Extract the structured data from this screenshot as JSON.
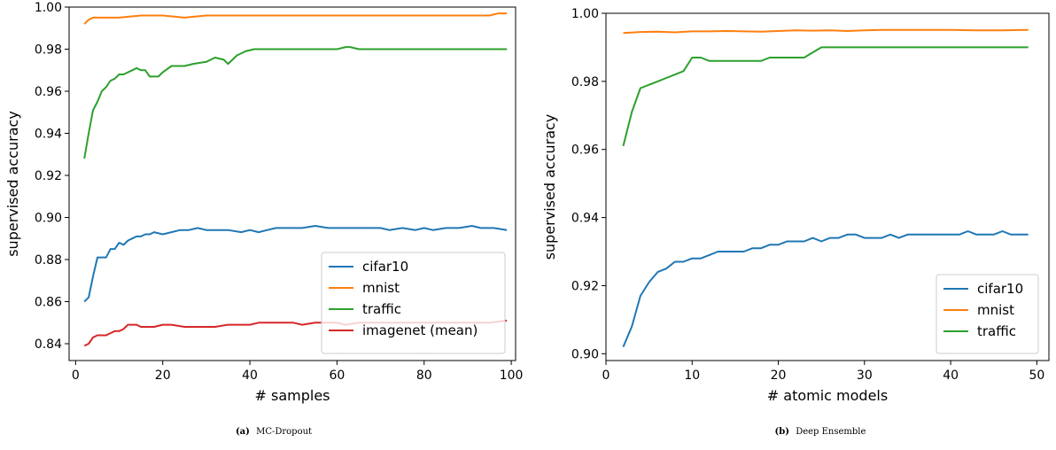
{
  "chart_data": [
    {
      "type": "line",
      "caption_tag": "(a)",
      "caption": "MC-Dropout",
      "xlabel": "# samples",
      "ylabel": "supervised accuracy",
      "xlim": [
        -1.5,
        101
      ],
      "ylim": [
        0.832,
        1.0
      ],
      "xticks": [
        0,
        20,
        40,
        60,
        80,
        100
      ],
      "yticks": [
        0.84,
        0.86,
        0.88,
        0.9,
        0.92,
        0.94,
        0.96,
        0.98,
        1.0
      ],
      "ytick_decimals": 2,
      "legend_position": "lower-right",
      "grid": false,
      "series": [
        {
          "name": "cifar10",
          "color": "#1f77b4",
          "points": [
            [
              2,
              0.86
            ],
            [
              3,
              0.862
            ],
            [
              4,
              0.872
            ],
            [
              5,
              0.881
            ],
            [
              6,
              0.881
            ],
            [
              7,
              0.881
            ],
            [
              8,
              0.885
            ],
            [
              9,
              0.885
            ],
            [
              10,
              0.888
            ],
            [
              11,
              0.887
            ],
            [
              12,
              0.889
            ],
            [
              13,
              0.89
            ],
            [
              14,
              0.891
            ],
            [
              15,
              0.891
            ],
            [
              16,
              0.892
            ],
            [
              17,
              0.892
            ],
            [
              18,
              0.893
            ],
            [
              20,
              0.892
            ],
            [
              22,
              0.893
            ],
            [
              24,
              0.894
            ],
            [
              26,
              0.894
            ],
            [
              28,
              0.895
            ],
            [
              30,
              0.894
            ],
            [
              32,
              0.894
            ],
            [
              35,
              0.894
            ],
            [
              38,
              0.893
            ],
            [
              40,
              0.894
            ],
            [
              42,
              0.893
            ],
            [
              44,
              0.894
            ],
            [
              46,
              0.895
            ],
            [
              48,
              0.895
            ],
            [
              50,
              0.895
            ],
            [
              52,
              0.895
            ],
            [
              55,
              0.896
            ],
            [
              58,
              0.895
            ],
            [
              60,
              0.895
            ],
            [
              62,
              0.895
            ],
            [
              65,
              0.895
            ],
            [
              68,
              0.895
            ],
            [
              70,
              0.895
            ],
            [
              72,
              0.894
            ],
            [
              75,
              0.895
            ],
            [
              78,
              0.894
            ],
            [
              80,
              0.895
            ],
            [
              82,
              0.894
            ],
            [
              85,
              0.895
            ],
            [
              88,
              0.895
            ],
            [
              91,
              0.896
            ],
            [
              93,
              0.895
            ],
            [
              96,
              0.895
            ],
            [
              99,
              0.894
            ]
          ]
        },
        {
          "name": "mnist",
          "color": "#ff7f0e",
          "points": [
            [
              2,
              0.992
            ],
            [
              3,
              0.994
            ],
            [
              4,
              0.995
            ],
            [
              6,
              0.995
            ],
            [
              8,
              0.995
            ],
            [
              10,
              0.995
            ],
            [
              15,
              0.996
            ],
            [
              20,
              0.996
            ],
            [
              25,
              0.995
            ],
            [
              30,
              0.996
            ],
            [
              35,
              0.996
            ],
            [
              40,
              0.996
            ],
            [
              50,
              0.996
            ],
            [
              60,
              0.996
            ],
            [
              70,
              0.996
            ],
            [
              80,
              0.996
            ],
            [
              90,
              0.996
            ],
            [
              95,
              0.996
            ],
            [
              97,
              0.997
            ],
            [
              99,
              0.997
            ]
          ]
        },
        {
          "name": "traffic",
          "color": "#2ca02c",
          "points": [
            [
              2,
              0.928
            ],
            [
              3,
              0.94
            ],
            [
              4,
              0.951
            ],
            [
              5,
              0.955
            ],
            [
              6,
              0.96
            ],
            [
              7,
              0.962
            ],
            [
              8,
              0.965
            ],
            [
              9,
              0.966
            ],
            [
              10,
              0.968
            ],
            [
              11,
              0.968
            ],
            [
              12,
              0.969
            ],
            [
              13,
              0.97
            ],
            [
              14,
              0.971
            ],
            [
              15,
              0.97
            ],
            [
              16,
              0.97
            ],
            [
              17,
              0.967
            ],
            [
              18,
              0.967
            ],
            [
              19,
              0.967
            ],
            [
              20,
              0.969
            ],
            [
              22,
              0.972
            ],
            [
              25,
              0.972
            ],
            [
              27,
              0.973
            ],
            [
              30,
              0.974
            ],
            [
              32,
              0.976
            ],
            [
              34,
              0.975
            ],
            [
              35,
              0.973
            ],
            [
              37,
              0.977
            ],
            [
              39,
              0.979
            ],
            [
              41,
              0.98
            ],
            [
              45,
              0.98
            ],
            [
              50,
              0.98
            ],
            [
              55,
              0.98
            ],
            [
              60,
              0.98
            ],
            [
              62,
              0.981
            ],
            [
              63,
              0.981
            ],
            [
              65,
              0.98
            ],
            [
              70,
              0.98
            ],
            [
              80,
              0.98
            ],
            [
              90,
              0.98
            ],
            [
              99,
              0.98
            ]
          ]
        },
        {
          "name": "imagenet (mean)",
          "color": "#d62728",
          "points": [
            [
              2,
              0.839
            ],
            [
              3,
              0.84
            ],
            [
              4,
              0.843
            ],
            [
              5,
              0.844
            ],
            [
              6,
              0.844
            ],
            [
              7,
              0.844
            ],
            [
              8,
              0.845
            ],
            [
              9,
              0.846
            ],
            [
              10,
              0.846
            ],
            [
              11,
              0.847
            ],
            [
              12,
              0.849
            ],
            [
              13,
              0.849
            ],
            [
              14,
              0.849
            ],
            [
              15,
              0.848
            ],
            [
              16,
              0.848
            ],
            [
              18,
              0.848
            ],
            [
              20,
              0.849
            ],
            [
              22,
              0.849
            ],
            [
              25,
              0.848
            ],
            [
              28,
              0.848
            ],
            [
              30,
              0.848
            ],
            [
              32,
              0.848
            ],
            [
              35,
              0.849
            ],
            [
              38,
              0.849
            ],
            [
              40,
              0.849
            ],
            [
              42,
              0.85
            ],
            [
              45,
              0.85
            ],
            [
              48,
              0.85
            ],
            [
              50,
              0.85
            ],
            [
              52,
              0.849
            ],
            [
              55,
              0.85
            ],
            [
              58,
              0.85
            ],
            [
              60,
              0.85
            ],
            [
              62,
              0.849
            ],
            [
              65,
              0.85
            ],
            [
              70,
              0.85
            ],
            [
              75,
              0.85
            ],
            [
              80,
              0.85
            ],
            [
              85,
              0.85
            ],
            [
              90,
              0.85
            ],
            [
              95,
              0.85
            ],
            [
              99,
              0.851
            ]
          ]
        }
      ]
    },
    {
      "type": "line",
      "caption_tag": "(b)",
      "caption": "Deep Ensemble",
      "xlabel": "# atomic models",
      "ylabel": "supervised accuracy",
      "xlim": [
        0,
        51.4
      ],
      "ylim": [
        0.898,
        1.0
      ],
      "xticks": [
        0,
        10,
        20,
        30,
        40,
        50
      ],
      "yticks": [
        0.9,
        0.92,
        0.94,
        0.96,
        0.98,
        1.0
      ],
      "ytick_decimals": 2,
      "legend_position": "lower-right",
      "grid": false,
      "series": [
        {
          "name": "cifar10",
          "color": "#1f77b4",
          "points": [
            [
              2,
              0.902
            ],
            [
              3,
              0.908
            ],
            [
              4,
              0.917
            ],
            [
              5,
              0.921
            ],
            [
              6,
              0.924
            ],
            [
              7,
              0.925
            ],
            [
              8,
              0.927
            ],
            [
              9,
              0.927
            ],
            [
              10,
              0.928
            ],
            [
              11,
              0.928
            ],
            [
              12,
              0.929
            ],
            [
              13,
              0.93
            ],
            [
              14,
              0.93
            ],
            [
              15,
              0.93
            ],
            [
              16,
              0.93
            ],
            [
              17,
              0.931
            ],
            [
              18,
              0.931
            ],
            [
              19,
              0.932
            ],
            [
              20,
              0.932
            ],
            [
              21,
              0.933
            ],
            [
              22,
              0.933
            ],
            [
              23,
              0.933
            ],
            [
              24,
              0.934
            ],
            [
              25,
              0.933
            ],
            [
              26,
              0.934
            ],
            [
              27,
              0.934
            ],
            [
              28,
              0.935
            ],
            [
              29,
              0.935
            ],
            [
              30,
              0.934
            ],
            [
              31,
              0.934
            ],
            [
              32,
              0.934
            ],
            [
              33,
              0.935
            ],
            [
              34,
              0.934
            ],
            [
              35,
              0.935
            ],
            [
              36,
              0.935
            ],
            [
              37,
              0.935
            ],
            [
              38,
              0.935
            ],
            [
              39,
              0.935
            ],
            [
              40,
              0.935
            ],
            [
              41,
              0.935
            ],
            [
              42,
              0.936
            ],
            [
              43,
              0.935
            ],
            [
              44,
              0.935
            ],
            [
              45,
              0.935
            ],
            [
              46,
              0.936
            ],
            [
              47,
              0.935
            ],
            [
              48,
              0.935
            ],
            [
              49,
              0.935
            ]
          ]
        },
        {
          "name": "mnist",
          "color": "#ff7f0e",
          "points": [
            [
              2,
              0.9942
            ],
            [
              4,
              0.9945
            ],
            [
              6,
              0.9946
            ],
            [
              8,
              0.9944
            ],
            [
              10,
              0.9947
            ],
            [
              12,
              0.9947
            ],
            [
              14,
              0.9948
            ],
            [
              16,
              0.9947
            ],
            [
              18,
              0.9946
            ],
            [
              20,
              0.9948
            ],
            [
              22,
              0.995
            ],
            [
              24,
              0.9949
            ],
            [
              26,
              0.995
            ],
            [
              28,
              0.9948
            ],
            [
              30,
              0.995
            ],
            [
              32,
              0.9951
            ],
            [
              35,
              0.9951
            ],
            [
              38,
              0.9951
            ],
            [
              40,
              0.9951
            ],
            [
              43,
              0.995
            ],
            [
              46,
              0.995
            ],
            [
              49,
              0.9951
            ]
          ]
        },
        {
          "name": "traffic",
          "color": "#2ca02c",
          "points": [
            [
              2,
              0.961
            ],
            [
              3,
              0.971
            ],
            [
              4,
              0.978
            ],
            [
              5,
              0.979
            ],
            [
              6,
              0.98
            ],
            [
              7,
              0.981
            ],
            [
              8,
              0.982
            ],
            [
              9,
              0.983
            ],
            [
              10,
              0.987
            ],
            [
              11,
              0.987
            ],
            [
              12,
              0.986
            ],
            [
              14,
              0.986
            ],
            [
              16,
              0.986
            ],
            [
              18,
              0.986
            ],
            [
              19,
              0.987
            ],
            [
              20,
              0.987
            ],
            [
              22,
              0.987
            ],
            [
              23,
              0.987
            ],
            [
              25,
              0.99
            ],
            [
              30,
              0.99
            ],
            [
              35,
              0.99
            ],
            [
              40,
              0.99
            ],
            [
              45,
              0.99
            ],
            [
              49,
              0.99
            ]
          ]
        }
      ]
    }
  ]
}
